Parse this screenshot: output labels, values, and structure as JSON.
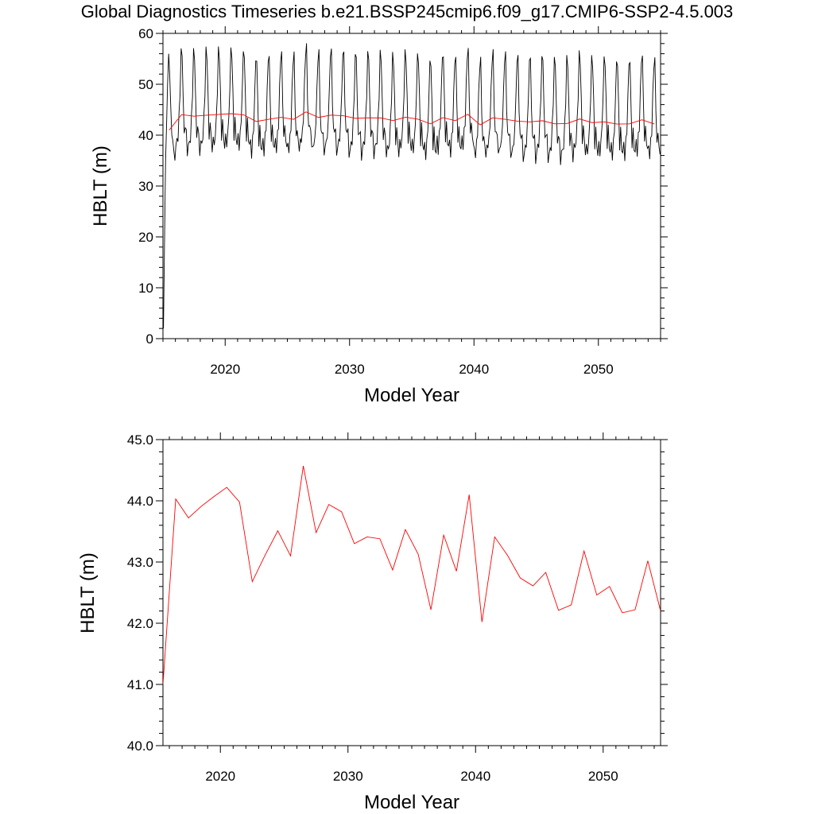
{
  "title": "Global Diagnostics Timeseries b.e21.BSSP245cmip6.f09_g17.CMIP6-SSP2-4.5.003",
  "chart_data": [
    {
      "type": "line",
      "xlabel": "Model Year",
      "ylabel": "HBLT (m)",
      "xlim": [
        2015,
        2055
      ],
      "ylim": [
        0,
        60
      ],
      "x_ticks": [
        "2020",
        "2030",
        "2040",
        "2050"
      ],
      "y_ticks": [
        "0",
        "10",
        "20",
        "30",
        "40",
        "50",
        "60"
      ],
      "grid": false,
      "colors": {
        "monthly": "#000000",
        "annual": "#ff0000"
      },
      "series": [
        {
          "style": "monthly",
          "seasonal_cycle": [
            38,
            37,
            39,
            42,
            48,
            55,
            55,
            46,
            39,
            41,
            39,
            36
          ],
          "x": [
            2015.04,
            2015.12,
            2015.21,
            2015.29,
            2015.37,
            2015.46,
            2015.54,
            2015.62,
            2015.71,
            2015.79,
            2015.87,
            2015.96
          ],
          "y": [
            2.0,
            18.0,
            35.0,
            42.0,
            50.0,
            56.0,
            52.0,
            46.0,
            40.0,
            39.0,
            37.0,
            35.0
          ]
        },
        {
          "style": "annual",
          "x": [
            2015.5,
            2016.5,
            2017.5,
            2018.5,
            2019.5,
            2020.5,
            2021.5,
            2022.5,
            2023.5,
            2024.5,
            2025.5,
            2026.5,
            2027.5,
            2028.5,
            2029.5,
            2030.5,
            2031.5,
            2032.5,
            2033.5,
            2034.5,
            2035.5,
            2036.5,
            2037.5,
            2038.5,
            2039.5,
            2040.5,
            2041.5,
            2042.5,
            2043.5,
            2044.5,
            2045.5,
            2046.5,
            2047.5,
            2048.5,
            2049.5,
            2050.5,
            2051.5,
            2052.5,
            2053.5,
            2054.5
          ],
          "y": [
            41.0,
            44.03,
            43.72,
            43.91,
            44.07,
            44.22,
            43.98,
            42.68,
            43.11,
            43.51,
            43.1,
            44.57,
            43.48,
            43.94,
            43.82,
            43.3,
            43.41,
            43.38,
            42.87,
            43.53,
            43.13,
            42.22,
            43.44,
            42.85,
            44.1,
            42.02,
            43.41,
            43.11,
            42.74,
            42.61,
            42.83,
            42.21,
            42.3,
            43.18,
            42.46,
            42.6,
            42.17,
            42.22,
            43.02,
            42.2
          ]
        }
      ]
    },
    {
      "type": "line",
      "xlabel": "Model Year",
      "ylabel": "HBLT (m)",
      "xlim": [
        2015.5,
        2054.5
      ],
      "ylim": [
        40.0,
        45.0
      ],
      "x_ticks": [
        "2020",
        "2030",
        "2040",
        "2050"
      ],
      "y_ticks": [
        "40.0",
        "41.0",
        "42.0",
        "43.0",
        "44.0",
        "45.0"
      ],
      "grid": false,
      "colors": {
        "annual": "#ff0000"
      },
      "series": [
        {
          "style": "annual",
          "x": [
            2015.5,
            2016.5,
            2017.5,
            2018.5,
            2019.5,
            2020.5,
            2021.5,
            2022.5,
            2023.5,
            2024.5,
            2025.5,
            2026.5,
            2027.5,
            2028.5,
            2029.5,
            2030.5,
            2031.5,
            2032.5,
            2033.5,
            2034.5,
            2035.5,
            2036.5,
            2037.5,
            2038.5,
            2039.5,
            2040.5,
            2041.5,
            2042.5,
            2043.5,
            2044.5,
            2045.5,
            2046.5,
            2047.5,
            2048.5,
            2049.5,
            2050.5,
            2051.5,
            2052.5,
            2053.5,
            2054.5
          ],
          "y": [
            41.0,
            44.03,
            43.72,
            43.91,
            44.07,
            44.22,
            43.98,
            42.68,
            43.11,
            43.51,
            43.1,
            44.57,
            43.48,
            43.94,
            43.82,
            43.3,
            43.41,
            43.38,
            42.87,
            43.53,
            43.13,
            42.22,
            43.44,
            42.85,
            44.1,
            42.02,
            43.41,
            43.11,
            42.74,
            42.61,
            42.83,
            42.21,
            42.3,
            43.18,
            42.46,
            42.6,
            42.17,
            42.22,
            43.02,
            42.2
          ]
        }
      ]
    }
  ]
}
